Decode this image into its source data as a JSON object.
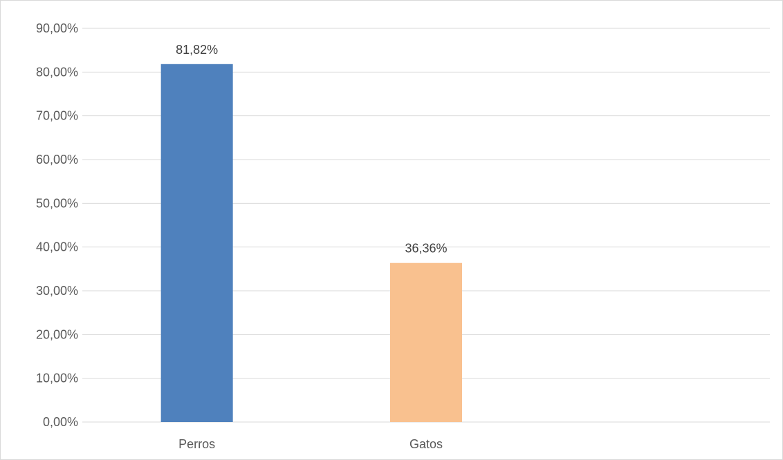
{
  "chart_data": {
    "type": "bar",
    "categories": [
      "Perros",
      "Gatos",
      ""
    ],
    "values": [
      81.82,
      36.36,
      null
    ],
    "data_labels": [
      "81,82%",
      "36,36%",
      ""
    ],
    "ylim": [
      0,
      90
    ],
    "y_tick_values": [
      0,
      10,
      20,
      30,
      40,
      50,
      60,
      70,
      80,
      90
    ],
    "y_tick_labels": [
      "0,00%",
      "10,00%",
      "20,00%",
      "30,00%",
      "40,00%",
      "50,00%",
      "60,00%",
      "70,00%",
      "80,00%",
      "90,00%"
    ],
    "bar_colors": [
      "#4f81bd",
      "#f9c18f"
    ],
    "grid": true,
    "legend": "none",
    "title": "",
    "xlabel": "",
    "ylabel": ""
  }
}
